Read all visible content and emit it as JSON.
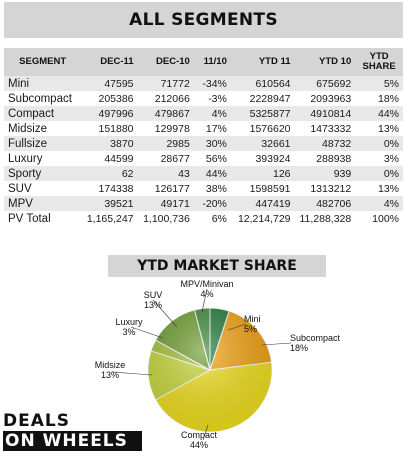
{
  "chart_data": [
    {
      "type": "table",
      "title": "ALL SEGMENTS",
      "columns": [
        "SEGMENT",
        "DEC-11",
        "DEC-10",
        "11/10",
        "YTD 11",
        "YTD 10",
        "YTD SHARE"
      ],
      "rows": [
        [
          "Mini",
          "47595",
          "71772",
          "-34%",
          "610564",
          "675692",
          "5%"
        ],
        [
          "Subcompact",
          "205386",
          "212066",
          "-3%",
          "2228947",
          "2093963",
          "18%"
        ],
        [
          "Compact",
          "497996",
          "479867",
          "4%",
          "5325877",
          "4910814",
          "44%"
        ],
        [
          "Midsize",
          "151880",
          "129978",
          "17%",
          "1576620",
          "1473332",
          "13%"
        ],
        [
          "Fullsize",
          "3870",
          "2985",
          "30%",
          "32661",
          "48732",
          "0%"
        ],
        [
          "Luxury",
          "44599",
          "28677",
          "56%",
          "393924",
          "288938",
          "3%"
        ],
        [
          "Sporty",
          "62",
          "43",
          "44%",
          "126",
          "939",
          "0%"
        ],
        [
          "SUV",
          "174338",
          "126177",
          "38%",
          "1598591",
          "1313212",
          "13%"
        ],
        [
          "MPV",
          "39521",
          "49171",
          "-20%",
          "447419",
          "482706",
          "4%"
        ],
        [
          "PV Total",
          "1,165,247",
          "1,100,736",
          "6%",
          "12,214,729",
          "11,288,328",
          "100%"
        ]
      ]
    },
    {
      "type": "pie",
      "title": "YTD MARKET SHARE",
      "slices": [
        {
          "name": "Mini",
          "value": 5,
          "label": "5%",
          "color": "#1f7a3a"
        },
        {
          "name": "Subcompact",
          "value": 18,
          "label": "18%",
          "color": "#f5a30f"
        },
        {
          "name": "Compact",
          "value": 44,
          "label": "44%",
          "color": "#f3e21b"
        },
        {
          "name": "Midsize",
          "value": 13,
          "label": "13%",
          "color": "#c9dc3a"
        },
        {
          "name": "Luxury",
          "value": 3,
          "label": "3%",
          "color": "#a7c43a"
        },
        {
          "name": "SUV",
          "value": 13,
          "label": "13%",
          "color": "#6f9f2f"
        },
        {
          "name": "MPV/Minivan",
          "value": 4,
          "label": "4%",
          "color": "#3d8a3c"
        }
      ]
    }
  ],
  "logo": {
    "line1": "DEALS",
    "line2": "ON WHEELS"
  }
}
